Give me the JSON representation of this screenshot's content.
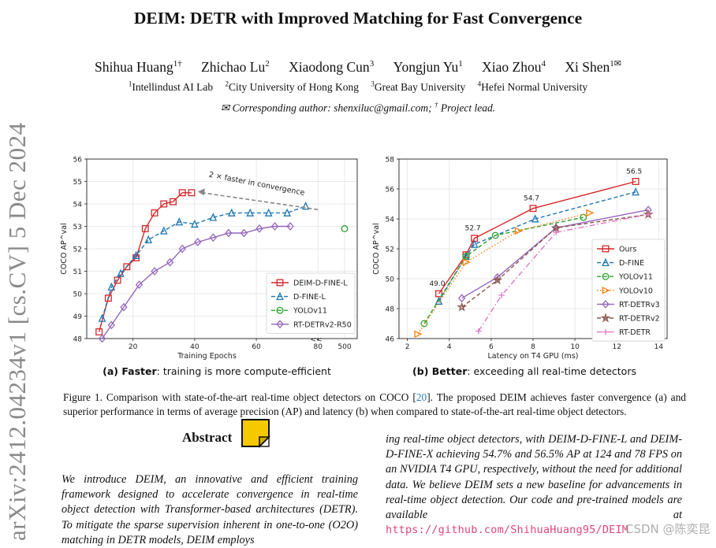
{
  "side_stamp": "arXiv:2412.04234v1  [cs.CV]  5 Dec 2024",
  "title": "DEIM: DETR with Improved Matching for Fast Convergence",
  "authors": [
    {
      "name": "Shihua Huang",
      "sup": "1†"
    },
    {
      "name": "Zhichao Lu",
      "sup": "2"
    },
    {
      "name": "Xiaodong Cun",
      "sup": "3"
    },
    {
      "name": "Yongjun Yu",
      "sup": "1"
    },
    {
      "name": "Xiao Zhou",
      "sup": "4"
    },
    {
      "name": "Xi Shen",
      "sup": "1✉"
    }
  ],
  "affiliations": [
    {
      "sup": "1",
      "name": "Intellindust AI Lab"
    },
    {
      "sup": "2",
      "name": "City University of Hong Kong"
    },
    {
      "sup": "3",
      "name": "Great Bay University"
    },
    {
      "sup": "4",
      "name": "Hefei Normal University"
    }
  ],
  "corresponding": {
    "mail_symbol": "✉",
    "text": "Corresponding author: shenxiluc@gmail.com;",
    "dagger": "†",
    "lead": "Project lead."
  },
  "chart_data": [
    {
      "type": "line",
      "ylabel": "COCO AP^val",
      "xlabel": "Training Epochs",
      "xlim": [
        5,
        83
      ],
      "ylim": [
        48,
        56
      ],
      "x_ticks": [
        20,
        40,
        60,
        80
      ],
      "x_tick_labels": [
        "20",
        "40",
        "60",
        "80"
      ],
      "extra_x_tick": {
        "label": "500",
        "note": "broken axis"
      },
      "axis_break_label": "<<",
      "y_ticks": [
        48,
        49,
        50,
        51,
        52,
        53,
        54,
        55,
        56
      ],
      "y_tick_labels": [
        "48",
        "49",
        "50",
        "51",
        "52",
        "53",
        "54",
        "55",
        "56"
      ],
      "annotation": "2 × faster in convergence",
      "subcaption_label": "(a) Faster",
      "subcaption_text": ": training is more compute-efficient",
      "series": [
        {
          "name": "DEIM-D-FINE-L",
          "color": "#d62728",
          "marker": "square",
          "dash": "solid",
          "x": [
            9,
            12,
            15,
            18,
            21,
            24,
            27,
            30,
            33,
            36,
            39
          ],
          "y": [
            48.3,
            49.8,
            50.6,
            51.2,
            51.6,
            52.9,
            53.6,
            54.0,
            54.1,
            54.5,
            54.5
          ]
        },
        {
          "name": "D-FINE-L",
          "color": "#1f77b4",
          "marker": "triangle",
          "dash": "dashed",
          "x": [
            10,
            13,
            16,
            21,
            25,
            30,
            35,
            40,
            46,
            52,
            58,
            64,
            70,
            76
          ],
          "y": [
            48.9,
            50.3,
            50.9,
            51.7,
            52.4,
            52.8,
            53.2,
            53.1,
            53.4,
            53.6,
            53.6,
            53.6,
            53.6,
            53.9
          ]
        },
        {
          "name": "YOLOv11",
          "color": "#2ca02c",
          "marker": "circle",
          "dash": "dashed",
          "points_label": "500",
          "y": [
            52.9
          ]
        },
        {
          "name": "RT-DETRv2-R50",
          "color": "#9467bd",
          "marker": "diamond",
          "dash": "solid",
          "x": [
            10,
            13,
            17,
            22,
            27,
            32,
            36,
            41,
            46,
            51,
            56,
            61,
            66,
            71
          ],
          "y": [
            48.0,
            48.6,
            49.4,
            50.4,
            51.0,
            51.4,
            52.0,
            52.3,
            52.5,
            52.7,
            52.7,
            52.9,
            53.0,
            53.0
          ]
        }
      ]
    },
    {
      "type": "line",
      "ylabel": "COCO AP^val",
      "xlabel": "Latency on T4 GPU (ms)",
      "xlim": [
        1.6,
        14.4
      ],
      "ylim": [
        46,
        58
      ],
      "x_ticks": [
        2,
        4,
        6,
        8,
        10,
        12,
        14
      ],
      "x_tick_labels": [
        "2",
        "4",
        "6",
        "8",
        "10",
        "12",
        "14"
      ],
      "y_ticks": [
        46,
        48,
        50,
        52,
        54,
        56,
        58
      ],
      "y_tick_labels": [
        "46",
        "48",
        "50",
        "52",
        "54",
        "56",
        "58"
      ],
      "subcaption_label": "(b) Better",
      "subcaption_text": ": exceeding all real-time detectors",
      "data_labels": [
        {
          "x": 3.5,
          "y": 49.0,
          "text": "49.0"
        },
        {
          "x": 5.2,
          "y": 52.7,
          "text": "52.7"
        },
        {
          "x": 8.0,
          "y": 54.7,
          "text": "54.7"
        },
        {
          "x": 12.9,
          "y": 56.5,
          "text": "56.5"
        }
      ],
      "series": [
        {
          "name": "Ours",
          "color": "#d62728",
          "marker": "square",
          "dash": "solid",
          "x": [
            3.5,
            4.8,
            5.2,
            8.0,
            12.9
          ],
          "y": [
            49.0,
            51.6,
            52.7,
            54.7,
            56.5
          ]
        },
        {
          "name": "D-FINE",
          "color": "#1f77b4",
          "marker": "triangle",
          "dash": "dashed",
          "x": [
            3.5,
            4.8,
            5.2,
            8.1,
            12.9
          ],
          "y": [
            48.5,
            51.5,
            52.3,
            54.0,
            55.8
          ]
        },
        {
          "name": "YOLOv11",
          "color": "#2ca02c",
          "marker": "circle",
          "dash": "dashed",
          "x": [
            2.8,
            4.8,
            6.2,
            10.4
          ],
          "y": [
            47.0,
            51.5,
            52.9,
            54.1
          ]
        },
        {
          "name": "YOLOv10",
          "color": "#ff7f0e",
          "marker": "triangle-right",
          "dash": "dotted",
          "x": [
            2.5,
            4.8,
            7.3,
            10.7
          ],
          "y": [
            46.3,
            51.1,
            53.2,
            54.4
          ]
        },
        {
          "name": "RT-DETRv3",
          "color": "#9467bd",
          "marker": "diamond",
          "dash": "solid",
          "x": [
            4.6,
            6.3,
            9.1,
            13.5
          ],
          "y": [
            48.7,
            50.1,
            53.4,
            54.6
          ]
        },
        {
          "name": "RT-DETRv2",
          "color": "#8c564b",
          "marker": "star",
          "dash": "dashed",
          "x": [
            4.6,
            6.3,
            9.1,
            13.5
          ],
          "y": [
            48.1,
            49.9,
            53.4,
            54.3
          ]
        },
        {
          "name": "RT-DETR",
          "color": "#e377c2",
          "marker": "plus",
          "dash": "dashdot",
          "x": [
            5.4,
            6.5,
            9.1,
            13.5
          ],
          "y": [
            46.5,
            48.9,
            53.1,
            54.3
          ]
        }
      ]
    }
  ],
  "figure_caption": {
    "text": "Figure 1. Comparison with state-of-the-art real-time object detectors on COCO [",
    "ref": "20",
    "rest": "]. The proposed DEIM achieves faster convergence (a) and superior performance in terms of average precision (AP) and latency (b) when compared to state-of-the-art real-time object detectors."
  },
  "abstract_heading": "Abstract",
  "abstract_left": "We introduce DEIM, an innovative and efficient training framework designed to accelerate convergence in real-time object detection with Transformer-based architectures (DETR). To mitigate the sparse supervision inherent in one-to-one (O2O) matching in DETR models, DEIM employs",
  "abstract_right": "ing real-time object detectors, with DEIM-D-FINE-L and DEIM-D-FINE-X achieving 54.7% and 56.5% AP at 124 and 78 FPS on an NVIDIA T4 GPU, respectively, without the need for additional data. We believe DEIM sets a new baseline for advancements in real-time object detection. Our code and pre-trained models are available at",
  "abstract_url": "https://github.com/ShihuaHuang95/DEIM",
  "watermark": "CSDN @陈奕昆",
  "colors": {
    "link_pink": "#e0467a",
    "badge_yellow": "#f5c800"
  }
}
